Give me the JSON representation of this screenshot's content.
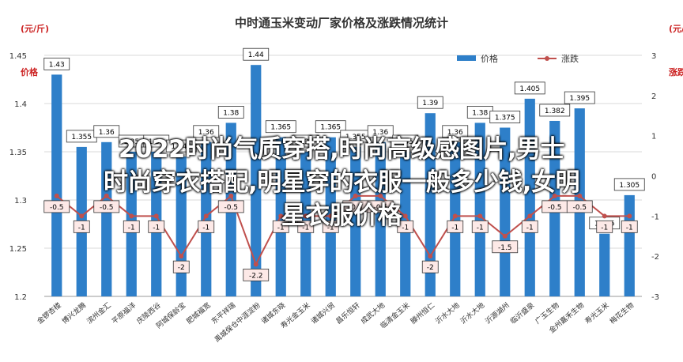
{
  "chart_data": {
    "type": "bar",
    "title": "中时通玉米变动厂家价格及涨跌情况统计",
    "categories": [
      "金锣杏楼",
      "博兴龙腾",
      "滨州金汇",
      "平原福洋",
      "庆陵西谷",
      "阿城保龄宝",
      "肥城福宽",
      "东平祥瑞",
      "禹城保仓中涯淀粉",
      "诸城东晓",
      "寿光金玉米",
      "诸城兴贸",
      "昌乐恒轩",
      "成武大地",
      "临清金玉米",
      "滕州恒仁",
      "沂水大地",
      "沂水大地",
      "沂源湖州",
      "临沂盛泉",
      "广玉生物",
      "金州嘉禾生物",
      "寿光玉米",
      "梅花生物"
    ],
    "series": [
      {
        "name": "价格",
        "type": "bar",
        "color": "#2e7fc9",
        "values": [
          1.43,
          1.355,
          1.36,
          1.35,
          1.35,
          1.345,
          1.36,
          1.38,
          1.44,
          1.365,
          1.35,
          1.365,
          1.355,
          1.36,
          1.35,
          1.39,
          1.36,
          1.38,
          1.375,
          1.405,
          1.382,
          1.395,
          1.265,
          1.305
        ]
      },
      {
        "name": "涨跌",
        "type": "line",
        "color": "#c0504d",
        "values": [
          -0.5,
          -1,
          -0.5,
          -1,
          -1,
          -2,
          -1,
          -0.5,
          -2.2,
          -1,
          -1,
          -1,
          -0.5,
          -0.5,
          -1,
          -2,
          -1,
          -1,
          -1.5,
          -1,
          -0.5,
          -0.5,
          -1,
          -1
        ]
      }
    ],
    "left_axis": {
      "label": "价格",
      "ylim": [
        1.2,
        1.45
      ],
      "ticks": [
        "1.2",
        "1.25",
        "1.3",
        "1.35",
        "1.4",
        "1.45"
      ]
    },
    "right_axis": {
      "label": "涨跌",
      "ylim": [
        -3,
        3
      ],
      "ticks": [
        "-3",
        "-2",
        "-1",
        "0",
        "1",
        "2",
        "3"
      ]
    },
    "left_unit_label": "(元/斤)",
    "right_unit_label": "(元/斤)",
    "legend": {
      "placement": "top-right"
    }
  },
  "overlay": {
    "line1": "2022时尚气质穿搭,时尚高级感图片,男士",
    "line2": "时尚穿衣搭配,明星穿的衣服一般多少钱,女明",
    "line3": "星衣服价格"
  }
}
